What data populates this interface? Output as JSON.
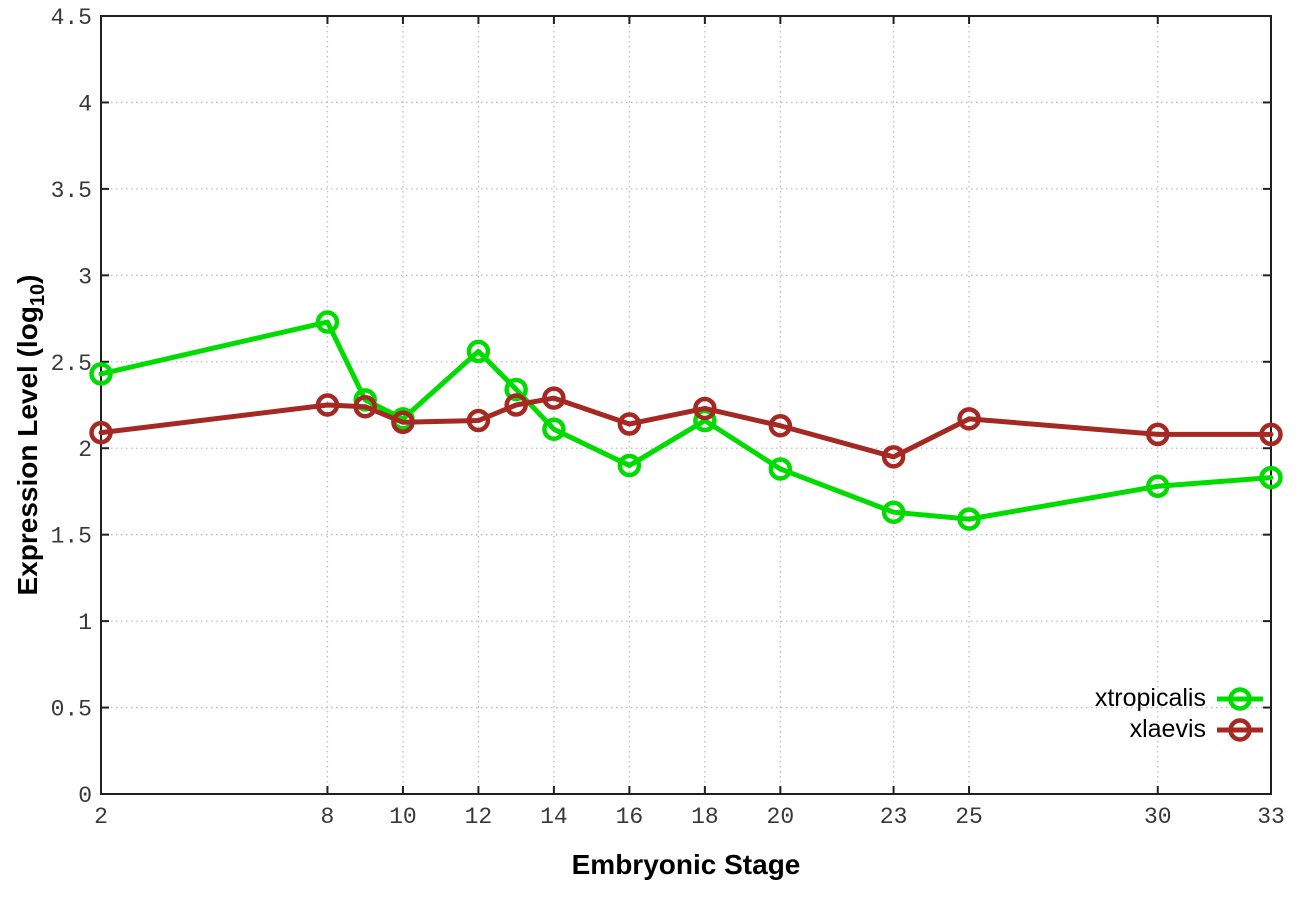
{
  "chart_data": {
    "type": "line",
    "title": "",
    "xlabel": "Embryonic Stage",
    "ylabel": {
      "prefix": "Expression Level (log",
      "sub": "10",
      "suffix": ")"
    },
    "xlim": [
      2,
      33
    ],
    "ylim": [
      0,
      4.5
    ],
    "x_ticks": [
      2,
      8,
      10,
      12,
      14,
      16,
      18,
      20,
      23,
      25,
      30,
      33
    ],
    "x_tick_labels": [
      "2",
      "8",
      "10",
      "12",
      "14",
      "16",
      "18",
      "20",
      "23",
      "25",
      "30",
      "33"
    ],
    "y_ticks": [
      0,
      0.5,
      1,
      1.5,
      2,
      2.5,
      3,
      3.5,
      4,
      4.5
    ],
    "y_tick_labels": [
      "0",
      "0.5",
      "1",
      "1.5",
      "2",
      "2.5",
      "3",
      "3.5",
      "4",
      "4.5"
    ],
    "grid": true,
    "marker": "open-circle",
    "legend_position": "inside-bottom-right",
    "x": [
      2,
      8,
      9,
      10,
      12,
      13,
      14,
      16,
      18,
      20,
      23,
      25,
      30,
      33
    ],
    "series": [
      {
        "name": "xtropicalis",
        "color": "#00dc00",
        "values": [
          2.43,
          2.73,
          2.28,
          2.17,
          2.56,
          2.34,
          2.11,
          1.9,
          2.16,
          1.88,
          1.63,
          1.59,
          1.78,
          1.83
        ]
      },
      {
        "name": "xlaevis",
        "color": "#a52822",
        "values": [
          2.09,
          2.25,
          2.24,
          2.15,
          2.16,
          2.25,
          2.29,
          2.14,
          2.23,
          2.13,
          1.95,
          2.17,
          2.08,
          2.08
        ]
      }
    ],
    "colors": {
      "grid": "#bcbcbc",
      "border": "#202020",
      "tick_text": "#383838"
    }
  }
}
